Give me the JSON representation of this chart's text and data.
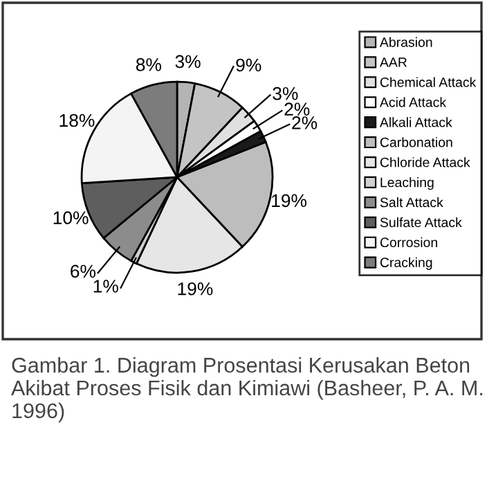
{
  "chart_data": {
    "type": "pie",
    "categories": [
      "Abrasion",
      "AAR",
      "Chemical Attack",
      "Acid Attack",
      "Alkali Attack",
      "Carbonation",
      "Chloride Attack",
      "Leaching",
      "Salt Attack",
      "Sulfate Attack",
      "Corrosion",
      "Cracking"
    ],
    "values": [
      3,
      9,
      3,
      2,
      2,
      19,
      19,
      1,
      6,
      10,
      18,
      8
    ],
    "value_labels": [
      "3%",
      "9%",
      "3%",
      "2%",
      "2%",
      "19%",
      "19%",
      "1%",
      "6%",
      "10%",
      "18%",
      "8%"
    ],
    "colors": [
      "#b4b4b4",
      "#c4c4c4",
      "#e0e0e0",
      "#ffffff",
      "#1a1a1a",
      "#bdbdbd",
      "#e6e6e6",
      "#d0d0d0",
      "#8c8c8c",
      "#5e5e5e",
      "#f4f4f4",
      "#7c7c7c"
    ],
    "legend": "right",
    "annotations": [
      "Gambar 1. Diagram Prosentasi Kerusakan Beton Akibat Proses Fisik dan Kimiawi (Basheer, P. A. M. 1996)"
    ]
  }
}
